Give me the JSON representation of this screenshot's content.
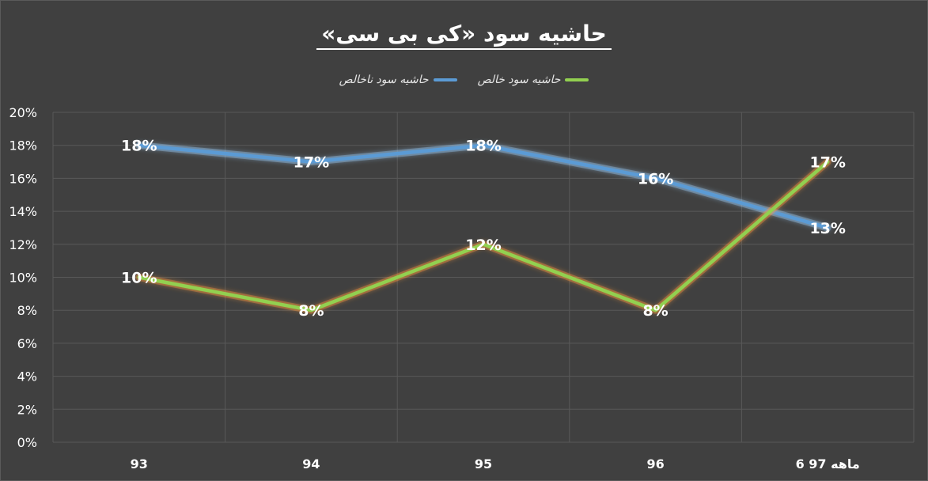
{
  "chart_data": {
    "type": "line",
    "title": "حاشیه سود «کی بی سی»",
    "categories": [
      "93",
      "94",
      "95",
      "96",
      "6 ماهه 97"
    ],
    "ylim": [
      0,
      20
    ],
    "y_ticks": [
      "0%",
      "2%",
      "4%",
      "6%",
      "8%",
      "10%",
      "12%",
      "14%",
      "16%",
      "18%",
      "20%"
    ],
    "grid": true,
    "legend_position": "top",
    "series": [
      {
        "name": "حاشیه سود ناخالص",
        "color": "#5b9bd5",
        "values": [
          18,
          17,
          18,
          16,
          13
        ],
        "labels": [
          "18%",
          "17%",
          "18%",
          "16%",
          "13%"
        ]
      },
      {
        "name": "حاشیه سود خالص",
        "color": "#92d050",
        "values": [
          10,
          8,
          12,
          8,
          17
        ],
        "labels": [
          "10%",
          "8%",
          "12%",
          "8%",
          "17%"
        ]
      }
    ]
  }
}
